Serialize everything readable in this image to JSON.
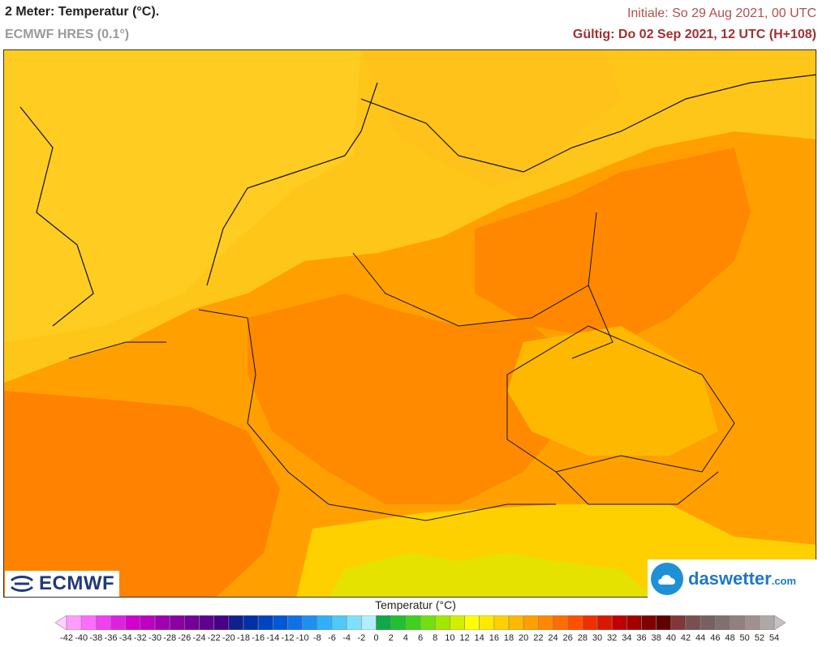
{
  "header": {
    "title": "2 Meter: Temperatur (°C).",
    "subtitle": "ECMWF HRES (0.1°)",
    "initial": "Initiale: So 29 Aug 2021, 00 UTC",
    "valid": "Gültig: Do 02 Sep 2021, 12 UTC (H+108)"
  },
  "logos": {
    "ecmwf": "ECMWF",
    "daswetter": "daswetter",
    "daswetter_tld": ".com"
  },
  "legend": {
    "title": "Temperatur (°C)",
    "ticks": [
      "-42",
      "-40",
      "-38",
      "-36",
      "-34",
      "-32",
      "-30",
      "-28",
      "-26",
      "-24",
      "-22",
      "-20",
      "-18",
      "-16",
      "-14",
      "-12",
      "-10",
      "-8",
      "-6",
      "-4",
      "-2",
      "0",
      "2",
      "4",
      "6",
      "8",
      "10",
      "12",
      "14",
      "16",
      "18",
      "20",
      "22",
      "24",
      "26",
      "28",
      "30",
      "32",
      "34",
      "36",
      "38",
      "40",
      "42",
      "44",
      "46",
      "48",
      "50",
      "52",
      "54"
    ],
    "colors": [
      "#ffd0ff",
      "#ff9cff",
      "#ff6cff",
      "#f040f0",
      "#e020e0",
      "#d000d0",
      "#c000c0",
      "#a000b0",
      "#8a00a0",
      "#740098",
      "#5e0090",
      "#480088",
      "#102090",
      "#0030a8",
      "#0044c0",
      "#0058d8",
      "#1070e8",
      "#2090f0",
      "#30b0f8",
      "#50c8f8",
      "#80e0fc",
      "#b0f0fc",
      "#10a848",
      "#20c030",
      "#40d020",
      "#70e010",
      "#a0e800",
      "#d0f000",
      "#ffff00",
      "#ffe800",
      "#ffd000",
      "#ffb800",
      "#ffa000",
      "#ff8800",
      "#ff6c00",
      "#ff5000",
      "#f03000",
      "#d81800",
      "#c00000",
      "#a00000",
      "#800000",
      "#600000",
      "#803838",
      "#785050",
      "#786060",
      "#807070",
      "#908080",
      "#a09090",
      "#b0a8a8",
      "#c8c0c0"
    ]
  },
  "map_colors": {
    "sea_cool": "#ffc61a",
    "land_warm": "#ffa000",
    "land_hot": "#ff8800",
    "hills": "#ffb800",
    "alps_low": "#ffd000",
    "alps_high": "#d0f000"
  }
}
